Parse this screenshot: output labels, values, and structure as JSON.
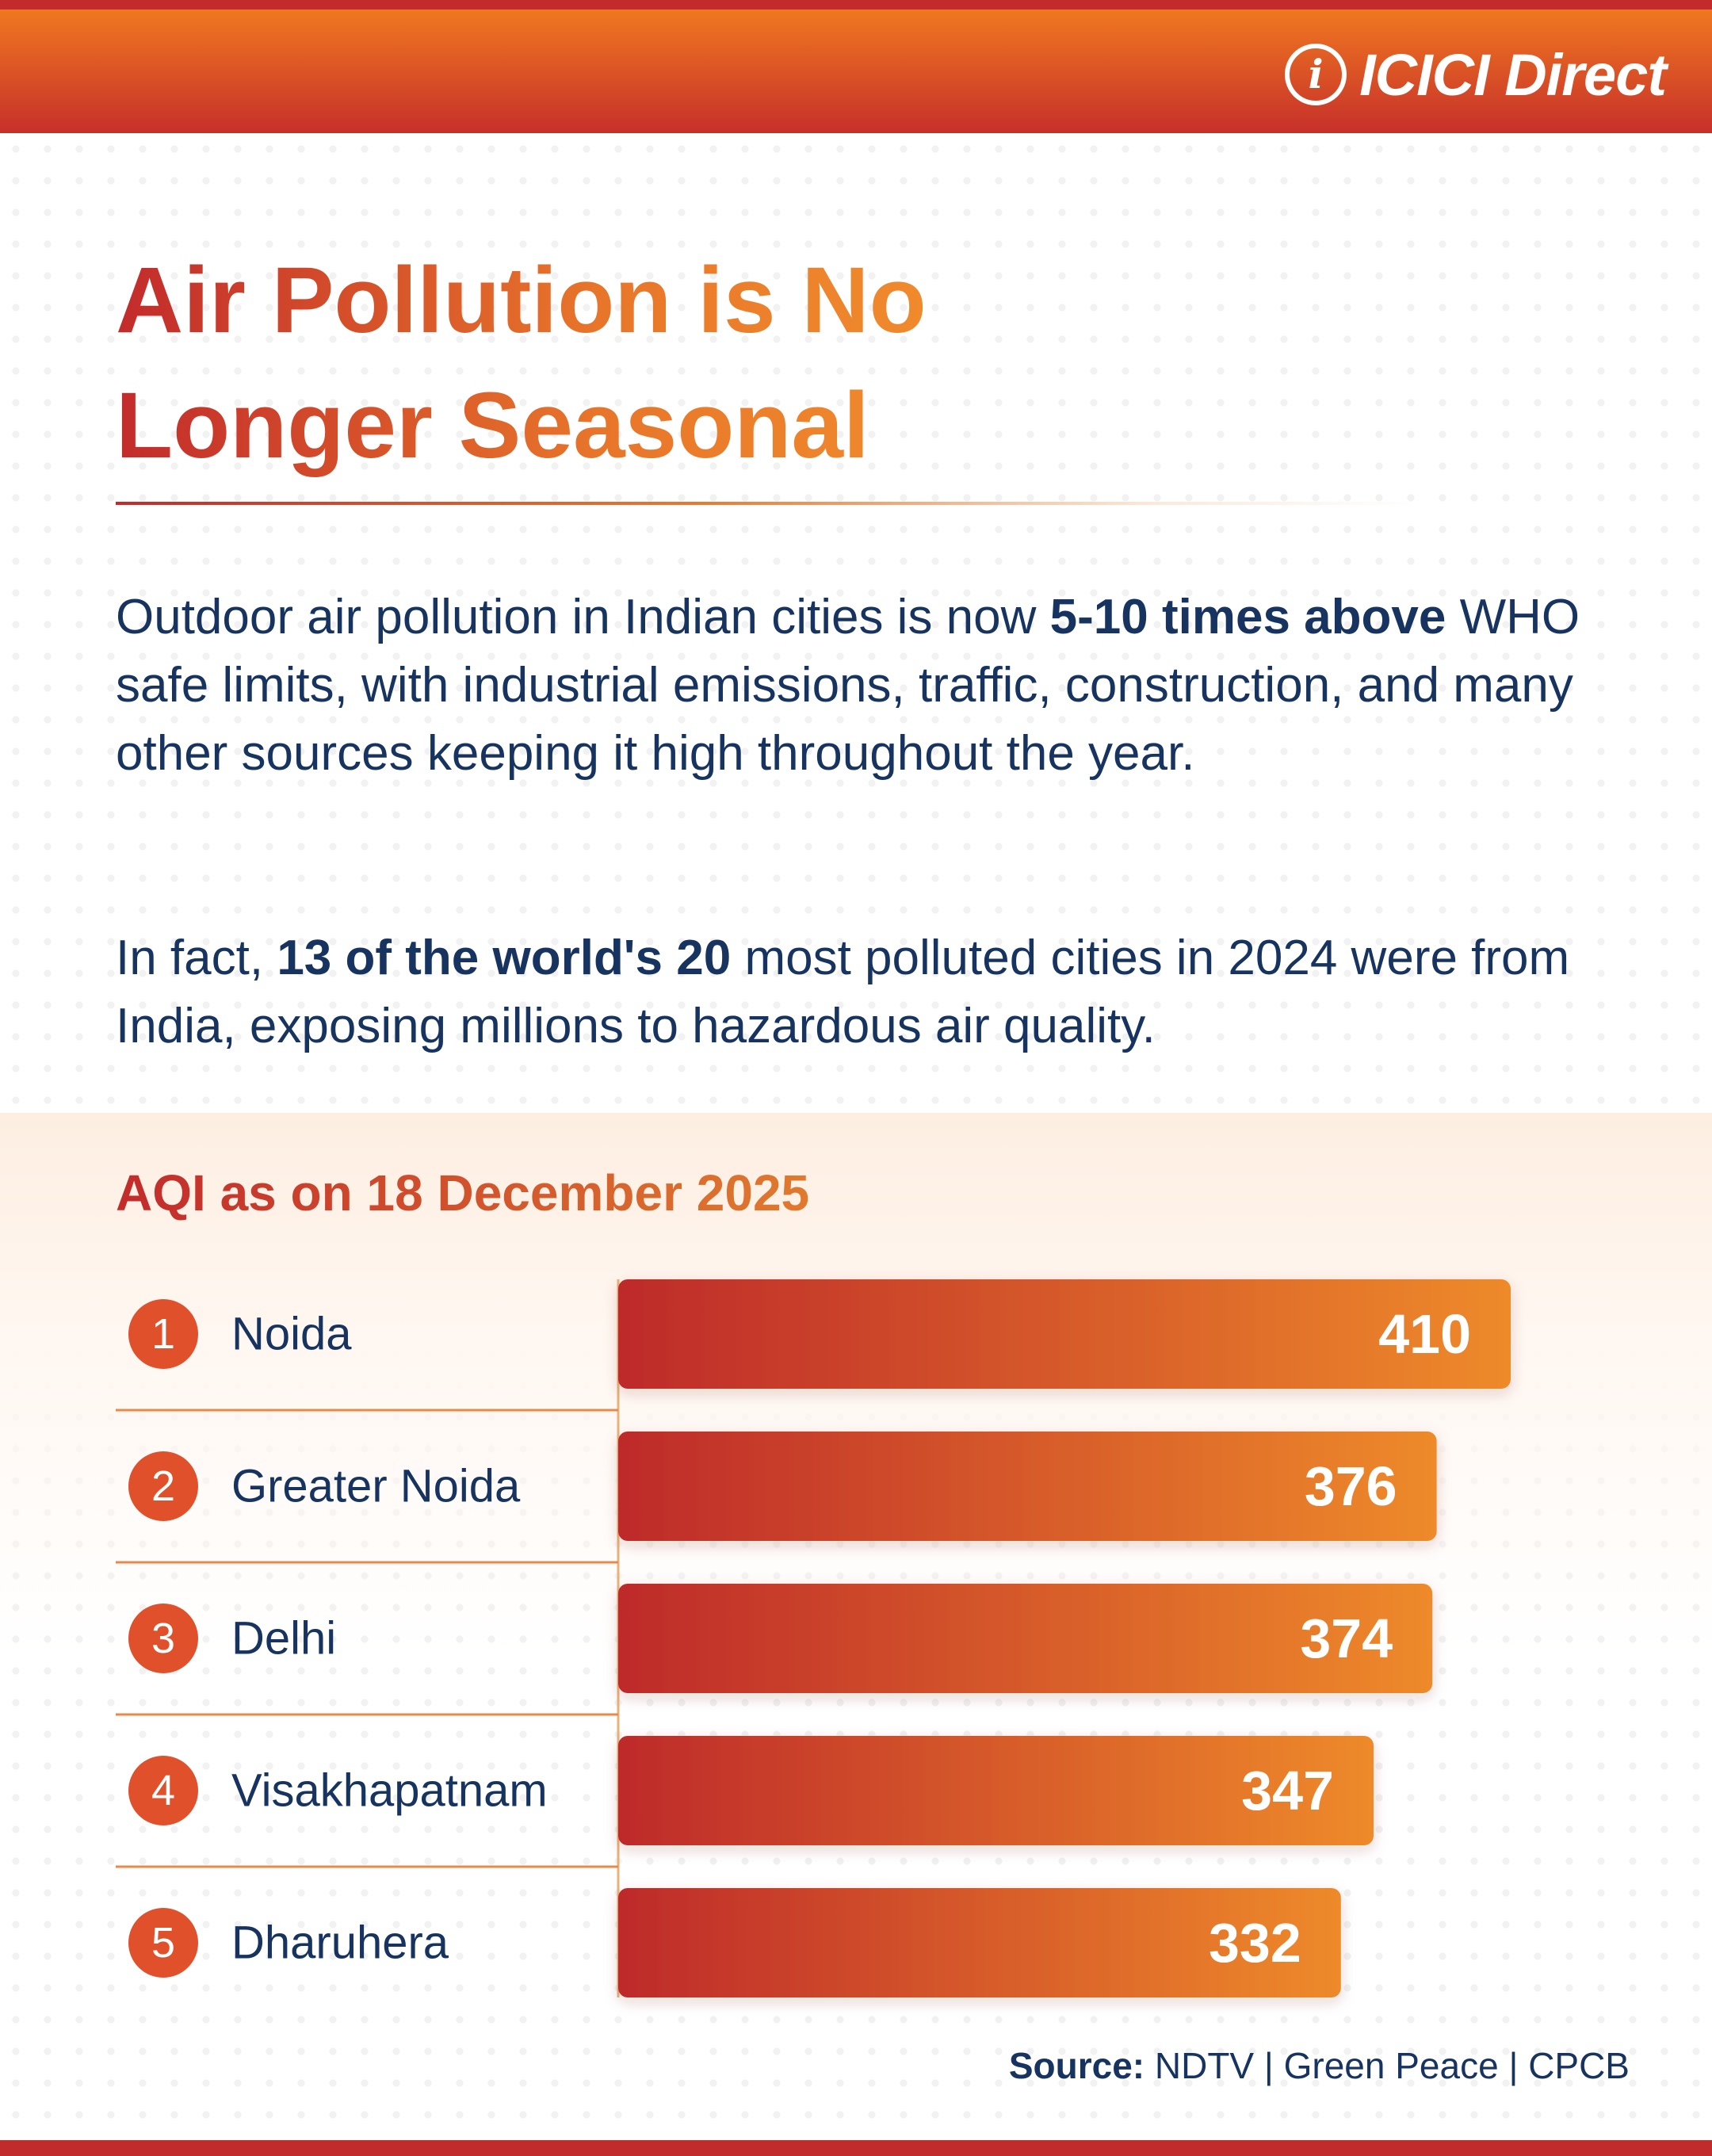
{
  "brand": {
    "mark": "i",
    "name": "ICICI Direct"
  },
  "title": {
    "line1": "Air Pollution is No",
    "line2": "Longer Seasonal"
  },
  "paragraph1": {
    "pre": "Outdoor air pollution in Indian cities is now ",
    "bold": "5-10 times above",
    "post": " WHO safe limits, with industrial emissions, traffic, construction, and many other sources keeping it high throughout the year."
  },
  "paragraph2": {
    "pre": "In fact, ",
    "bold": "13 of the world's 20",
    "post": " most polluted cities in 2024 were from India, exposing millions to hazardous air quality."
  },
  "source": {
    "label": "Source:",
    "text": "NDTV | Green Peace | CPCB"
  },
  "colors": {
    "accent_red": "#c22b2b",
    "accent_orange": "#f08a2c",
    "text_navy": "#17335f"
  },
  "chart_data": {
    "type": "bar",
    "orientation": "horizontal",
    "title": "AQI as on 18 December 2025",
    "categories": [
      "Noida",
      "Greater Noida",
      "Delhi",
      "Visakhapatnam",
      "Dharuhera"
    ],
    "ranks": [
      "1",
      "2",
      "3",
      "4",
      "5"
    ],
    "values": [
      410,
      376,
      374,
      347,
      332
    ],
    "xlim": [
      0,
      410
    ],
    "grid": false,
    "legend": "none",
    "data_labels": true
  }
}
